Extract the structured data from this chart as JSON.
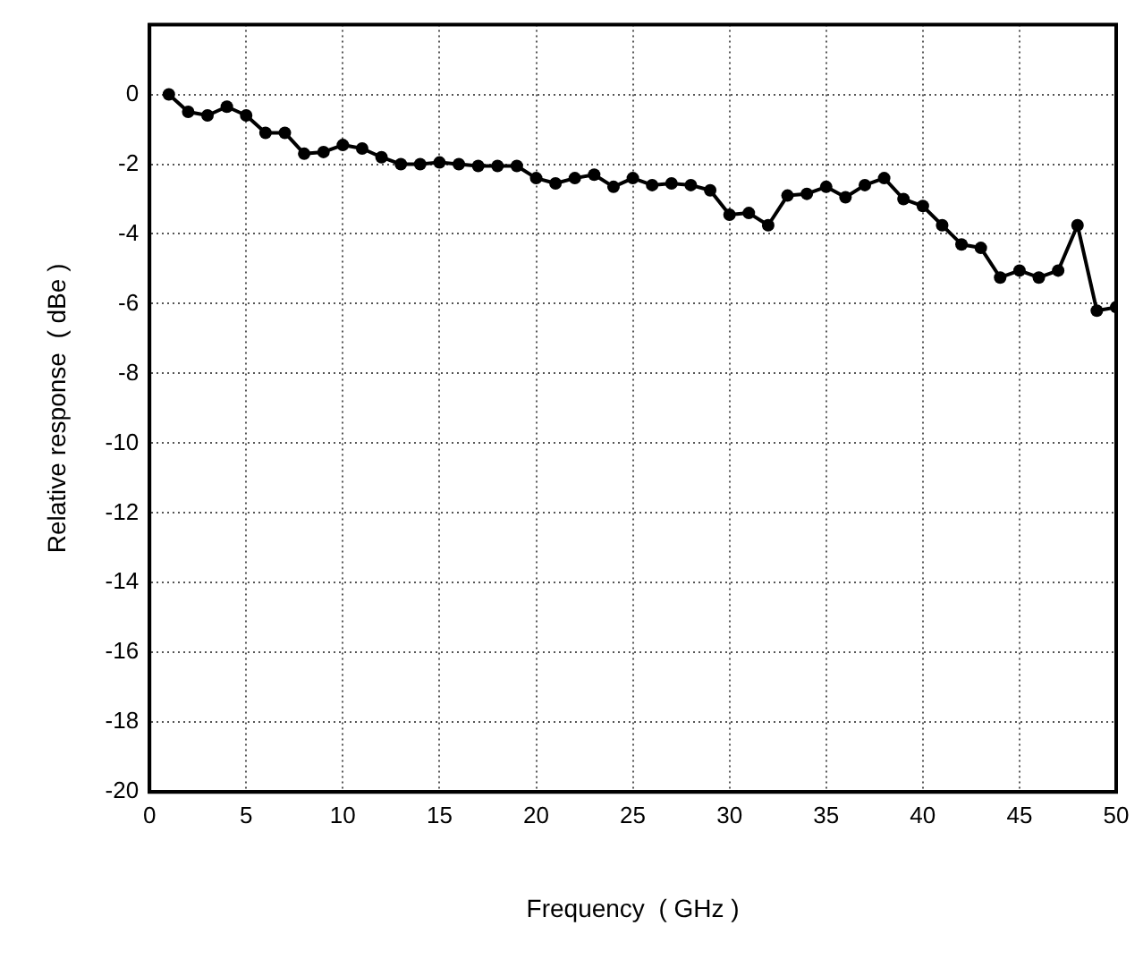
{
  "chart_data": {
    "type": "line",
    "xlabel": "Frequency  ( GHz )",
    "ylabel": "Relative response  ( dBe )",
    "x": [
      1,
      2,
      3,
      4,
      5,
      6,
      7,
      8,
      9,
      10,
      11,
      12,
      13,
      14,
      15,
      16,
      17,
      18,
      19,
      20,
      21,
      22,
      23,
      24,
      25,
      26,
      27,
      28,
      29,
      30,
      31,
      32,
      33,
      34,
      35,
      36,
      37,
      38,
      39,
      40,
      41,
      42,
      43,
      44,
      45,
      46,
      47,
      48,
      49,
      50
    ],
    "series": [
      {
        "color": "#000000",
        "values": [
          0,
          -0.5,
          -0.6,
          -0.35,
          -0.6,
          -1.1,
          -1.1,
          -1.7,
          -1.65,
          -1.45,
          -1.55,
          -1.8,
          -2.0,
          -2.0,
          -1.95,
          -2.0,
          -2.05,
          -2.05,
          -2.05,
          -2.4,
          -2.55,
          -2.4,
          -2.3,
          -2.65,
          -2.4,
          -2.6,
          -2.55,
          -2.6,
          -2.75,
          -3.45,
          -3.4,
          -3.75,
          -2.9,
          -2.85,
          -2.65,
          -2.95,
          -2.6,
          -2.4,
          -3.0,
          -3.2,
          -3.75,
          -4.3,
          -4.4,
          -5.25,
          -5.05,
          -5.25,
          -5.05,
          -3.75,
          -6.2,
          -6.1
        ]
      }
    ],
    "xlim": [
      0,
      50
    ],
    "xticks": [
      0,
      5,
      10,
      15,
      20,
      25,
      30,
      35,
      40,
      45,
      50
    ],
    "ylim": [
      -20,
      2
    ],
    "yticks": [
      -20,
      -18,
      -16,
      -14,
      -12,
      -10,
      -8,
      -6,
      -4,
      -2,
      0
    ],
    "grid": true,
    "legend": false,
    "marker": "circle",
    "line_style": "solid"
  }
}
